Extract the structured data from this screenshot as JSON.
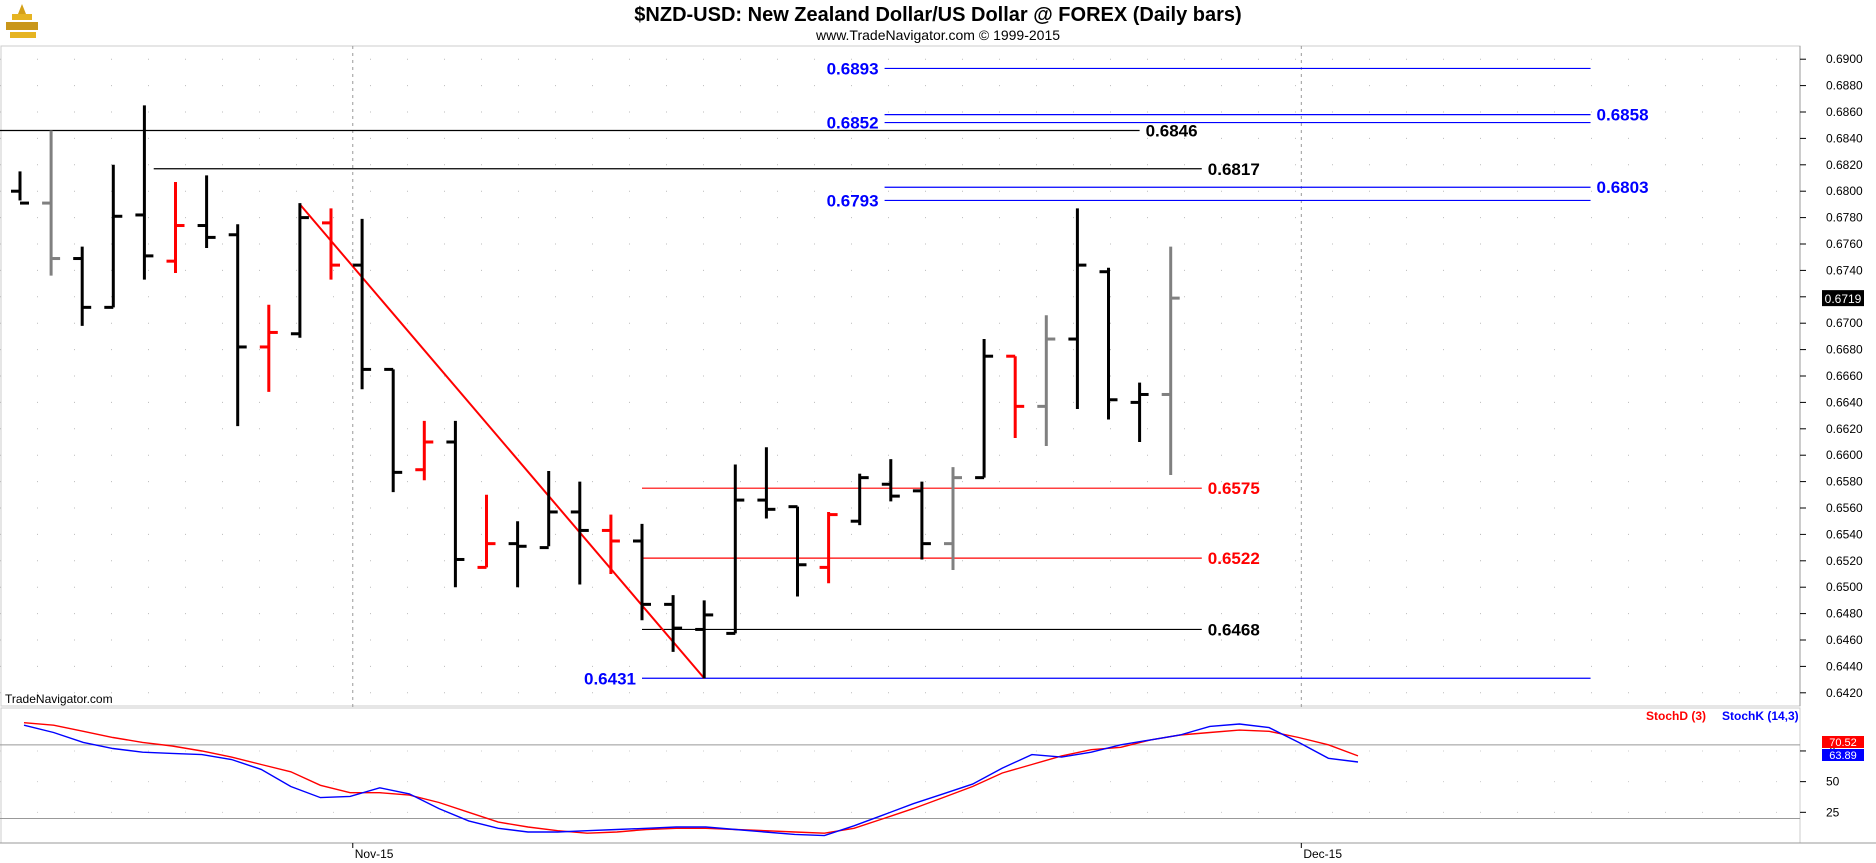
{
  "header": {
    "title": "$NZD-USD:  New Zealand Dollar/US Dollar @ FOREX  (Daily bars)",
    "subtitle": "www.TradeNavigator.com © 1999-2015"
  },
  "watermark": "TradeNavigator.com",
  "colors": {
    "up": "#000000",
    "down": "#ff0000",
    "neutral": "#808080",
    "blue": "#0000ff",
    "red": "#ff0000",
    "black": "#000000",
    "bg": "#ffffff"
  },
  "chart_data": [
    {
      "type": "ohlc",
      "title": "$NZD-USD:  New Zealand Dollar/US Dollar @ FOREX  (Daily bars)",
      "ylim": [
        0.641,
        0.691
      ],
      "y_ticks": [
        "0.6420",
        "0.6440",
        "0.6460",
        "0.6480",
        "0.6500",
        "0.6520",
        "0.6540",
        "0.6560",
        "0.6580",
        "0.6600",
        "0.6620",
        "0.6640",
        "0.6660",
        "0.6680",
        "0.6700",
        "0.6720",
        "0.6740",
        "0.6760",
        "0.6780",
        "0.6800",
        "0.6820",
        "0.6840",
        "0.6860",
        "0.6880",
        "0.6900"
      ],
      "x_labels": [
        {
          "label": "Nov-15",
          "index": 10.7
        },
        {
          "label": "Dec-15",
          "index": 41.2
        }
      ],
      "last_price": "0.6719",
      "bars": [
        {
          "i": 0,
          "o": 0.68,
          "h": 0.6815,
          "l": 0.6793,
          "c": 0.6791,
          "color": "black"
        },
        {
          "i": 1,
          "o": 0.6791,
          "h": 0.6846,
          "l": 0.6736,
          "c": 0.6749,
          "color": "gray"
        },
        {
          "i": 2,
          "o": 0.6749,
          "h": 0.6758,
          "l": 0.6698,
          "c": 0.6712,
          "color": "black"
        },
        {
          "i": 3,
          "o": 0.6712,
          "h": 0.682,
          "l": 0.6712,
          "c": 0.6781,
          "color": "black"
        },
        {
          "i": 4,
          "o": 0.6782,
          "h": 0.6865,
          "l": 0.6733,
          "c": 0.6751,
          "color": "black"
        },
        {
          "i": 5,
          "o": 0.6747,
          "h": 0.6807,
          "l": 0.6738,
          "c": 0.6774,
          "color": "red"
        },
        {
          "i": 6,
          "o": 0.6774,
          "h": 0.6812,
          "l": 0.6757,
          "c": 0.6765,
          "color": "black"
        },
        {
          "i": 7,
          "o": 0.6767,
          "h": 0.6775,
          "l": 0.6622,
          "c": 0.6682,
          "color": "black"
        },
        {
          "i": 8,
          "o": 0.6682,
          "h": 0.6714,
          "l": 0.6648,
          "c": 0.6693,
          "color": "red"
        },
        {
          "i": 9,
          "o": 0.6692,
          "h": 0.6791,
          "l": 0.6689,
          "c": 0.678,
          "color": "black"
        },
        {
          "i": 10,
          "o": 0.6776,
          "h": 0.6787,
          "l": 0.6733,
          "c": 0.6744,
          "color": "red"
        },
        {
          "i": 11,
          "o": 0.6744,
          "h": 0.6779,
          "l": 0.665,
          "c": 0.6665,
          "color": "black"
        },
        {
          "i": 12,
          "o": 0.6665,
          "h": 0.6665,
          "l": 0.6572,
          "c": 0.6587,
          "color": "black"
        },
        {
          "i": 13,
          "o": 0.6589,
          "h": 0.6626,
          "l": 0.6581,
          "c": 0.661,
          "color": "red"
        },
        {
          "i": 14,
          "o": 0.661,
          "h": 0.6626,
          "l": 0.65,
          "c": 0.6521,
          "color": "black"
        },
        {
          "i": 15,
          "o": 0.6515,
          "h": 0.657,
          "l": 0.6515,
          "c": 0.6533,
          "color": "red"
        },
        {
          "i": 16,
          "o": 0.6533,
          "h": 0.655,
          "l": 0.65,
          "c": 0.6531,
          "color": "black"
        },
        {
          "i": 17,
          "o": 0.653,
          "h": 0.6588,
          "l": 0.6531,
          "c": 0.6557,
          "color": "black"
        },
        {
          "i": 18,
          "o": 0.6557,
          "h": 0.658,
          "l": 0.6502,
          "c": 0.6543,
          "color": "black"
        },
        {
          "i": 19,
          "o": 0.6543,
          "h": 0.6555,
          "l": 0.651,
          "c": 0.6535,
          "color": "red"
        },
        {
          "i": 20,
          "o": 0.6535,
          "h": 0.6548,
          "l": 0.6475,
          "c": 0.6487,
          "color": "black"
        },
        {
          "i": 21,
          "o": 0.6487,
          "h": 0.6494,
          "l": 0.6451,
          "c": 0.6469,
          "color": "black"
        },
        {
          "i": 22,
          "o": 0.6468,
          "h": 0.649,
          "l": 0.6431,
          "c": 0.6479,
          "color": "black"
        },
        {
          "i": 23,
          "o": 0.6465,
          "h": 0.6593,
          "l": 0.6465,
          "c": 0.6566,
          "color": "black"
        },
        {
          "i": 24,
          "o": 0.6566,
          "h": 0.6606,
          "l": 0.6552,
          "c": 0.6559,
          "color": "black"
        },
        {
          "i": 25,
          "o": 0.6561,
          "h": 0.6561,
          "l": 0.6493,
          "c": 0.6517,
          "color": "black"
        },
        {
          "i": 26,
          "o": 0.6515,
          "h": 0.6557,
          "l": 0.6503,
          "c": 0.6555,
          "color": "red"
        },
        {
          "i": 27,
          "o": 0.655,
          "h": 0.6586,
          "l": 0.6547,
          "c": 0.6583,
          "color": "black"
        },
        {
          "i": 28,
          "o": 0.6578,
          "h": 0.6597,
          "l": 0.6565,
          "c": 0.6569,
          "color": "black"
        },
        {
          "i": 29,
          "o": 0.6573,
          "h": 0.658,
          "l": 0.6521,
          "c": 0.6533,
          "color": "black"
        },
        {
          "i": 30,
          "o": 0.6533,
          "h": 0.6591,
          "l": 0.6513,
          "c": 0.6583,
          "color": "gray"
        },
        {
          "i": 31,
          "o": 0.6583,
          "h": 0.6688,
          "l": 0.6583,
          "c": 0.6675,
          "color": "black"
        },
        {
          "i": 32,
          "o": 0.6675,
          "h": 0.6675,
          "l": 0.6613,
          "c": 0.6637,
          "color": "red"
        },
        {
          "i": 33,
          "o": 0.6637,
          "h": 0.6706,
          "l": 0.6607,
          "c": 0.6688,
          "color": "gray"
        },
        {
          "i": 34,
          "o": 0.6688,
          "h": 0.6787,
          "l": 0.6635,
          "c": 0.6744,
          "color": "black"
        },
        {
          "i": 35,
          "o": 0.6739,
          "h": 0.6742,
          "l": 0.6627,
          "c": 0.6642,
          "color": "black"
        },
        {
          "i": 36,
          "o": 0.664,
          "h": 0.6655,
          "l": 0.661,
          "c": 0.6646,
          "color": "black"
        },
        {
          "i": 37,
          "o": 0.6646,
          "h": 0.6758,
          "l": 0.6585,
          "c": 0.6719,
          "color": "gray"
        }
      ],
      "levels": [
        {
          "label": "0.6893",
          "value": 0.6893,
          "color": "blue",
          "from": 0.6893,
          "start": 27.8,
          "end": 50.5,
          "label_side": "left"
        },
        {
          "label": "0.6852",
          "value": 0.6852,
          "color": "blue",
          "from": 0.6852,
          "start": 27.8,
          "end": 50.5,
          "label_side": "left"
        },
        {
          "label": "0.6858",
          "value": 0.6858,
          "color": "blue",
          "from": 0.6858,
          "start": 27.8,
          "end": 50.5,
          "label_side": "right"
        },
        {
          "label": "0.6846",
          "value": 0.6846,
          "color": "black",
          "start": -5.0,
          "end": 36.0,
          "label_side": "right"
        },
        {
          "label": "0.6817",
          "value": 0.6817,
          "color": "black",
          "start": 4.3,
          "end": 38.0,
          "label_side": "right"
        },
        {
          "label": "0.6803",
          "value": 0.6803,
          "color": "blue",
          "start": 27.8,
          "end": 50.5,
          "label_side": "right"
        },
        {
          "label": "0.6793",
          "value": 0.6793,
          "color": "blue",
          "start": 27.8,
          "end": 50.5,
          "label_side": "left"
        },
        {
          "label": "0.6575",
          "value": 0.6575,
          "color": "red",
          "start": 20.0,
          "end": 38.0,
          "label_side": "right"
        },
        {
          "label": "0.6522",
          "value": 0.6522,
          "color": "red",
          "start": 20.0,
          "end": 38.0,
          "label_side": "right"
        },
        {
          "label": "0.6468",
          "value": 0.6468,
          "color": "black",
          "start": 20.0,
          "end": 38.0,
          "label_side": "right"
        },
        {
          "label": "0.6431",
          "value": 0.6431,
          "color": "blue",
          "start": 20.0,
          "end": 50.5,
          "label_side": "left"
        }
      ],
      "trendline": {
        "color": "red",
        "points": [
          {
            "i": 9,
            "v": 0.679
          },
          {
            "i": 22,
            "v": 0.6431
          }
        ]
      }
    },
    {
      "type": "line",
      "title": "",
      "ylim": [
        0,
        110
      ],
      "y_ticks": [
        "25",
        "50",
        "75"
      ],
      "reference_lines": [
        20,
        80
      ],
      "last_values": [
        "70.52",
        "63.89"
      ],
      "legend": [
        {
          "name": "StochD (3)",
          "color": "#ff0000"
        },
        {
          "name": "StochK (14,3)",
          "color": "#0000ff"
        }
      ],
      "series": [
        {
          "name": "StochD (3)",
          "color": "#ff0000",
          "values": [
            98,
            96,
            91,
            86,
            82,
            79,
            75,
            70,
            64,
            58,
            47,
            41,
            41,
            39,
            33,
            25,
            17,
            13,
            10,
            8,
            9,
            11,
            12,
            12,
            11,
            10,
            9,
            8,
            12,
            20,
            28,
            37,
            46,
            57,
            64,
            71,
            76,
            78,
            84,
            88,
            90,
            92,
            91,
            86,
            80,
            71
          ]
        },
        {
          "name": "StochK (14,3)",
          "color": "#0000ff",
          "values": [
            96,
            90,
            82,
            77,
            74,
            73,
            72,
            68,
            60,
            46,
            37,
            38,
            45,
            40,
            28,
            18,
            12,
            9,
            9,
            10,
            11,
            12,
            13,
            13,
            11,
            9,
            7,
            6,
            14,
            23,
            32,
            40,
            48,
            61,
            72,
            70,
            74,
            80,
            84,
            88,
            95,
            97,
            94,
            82,
            69,
            66
          ]
        }
      ]
    }
  ]
}
